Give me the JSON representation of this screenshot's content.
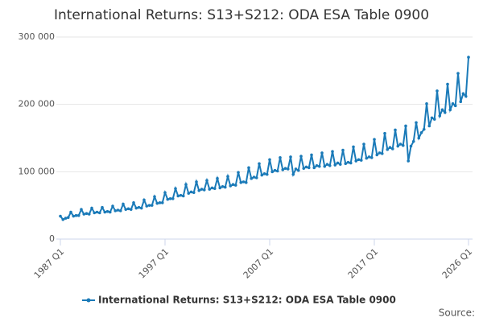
{
  "chart_data": {
    "type": "line",
    "title": "International Returns: S13+S212: ODA ESA Table 0900",
    "source": "Source:",
    "categories": [
      "1987 Q1",
      null,
      null,
      null,
      null,
      null,
      null,
      null,
      null,
      null,
      null,
      null,
      null,
      null,
      null,
      null,
      null,
      null,
      null,
      null,
      null,
      null,
      null,
      null,
      null,
      null,
      null,
      null,
      null,
      null,
      null,
      null,
      null,
      null,
      null,
      null,
      null,
      null,
      null,
      null,
      "1997 Q1",
      null,
      null,
      null,
      null,
      null,
      null,
      null,
      null,
      null,
      null,
      null,
      null,
      null,
      null,
      null,
      null,
      null,
      null,
      null,
      null,
      null,
      null,
      null,
      null,
      null,
      null,
      null,
      null,
      null,
      null,
      null,
      null,
      null,
      null,
      null,
      null,
      null,
      null,
      null,
      "2007 Q1",
      null,
      null,
      null,
      null,
      null,
      null,
      null,
      null,
      null,
      null,
      null,
      null,
      null,
      null,
      null,
      null,
      null,
      null,
      null,
      null,
      null,
      null,
      null,
      null,
      null,
      null,
      null,
      null,
      null,
      null,
      null,
      null,
      null,
      null,
      null,
      null,
      null,
      null,
      null,
      "2017 Q1",
      null,
      null,
      null,
      null,
      null,
      null,
      null,
      null,
      null,
      null,
      null,
      null,
      null,
      null,
      null,
      null,
      null,
      null,
      null,
      null,
      null,
      null,
      null,
      null,
      null,
      null,
      null,
      null,
      null,
      null,
      null,
      null,
      null,
      null,
      null,
      "2026 Q1"
    ],
    "series": [
      {
        "name": "International Returns: S13+S212: ODA ESA Table 0900",
        "color": "#1a7ab8",
        "values": [
          34000,
          29000,
          31000,
          32000,
          40000,
          34000,
          35000,
          35000,
          44000,
          37000,
          38000,
          37000,
          46000,
          39000,
          40000,
          39000,
          47000,
          40000,
          41000,
          40000,
          49000,
          42000,
          43000,
          42000,
          52000,
          44000,
          45000,
          44000,
          54000,
          46000,
          47000,
          46000,
          58000,
          49000,
          50000,
          50000,
          63000,
          53000,
          54000,
          54000,
          69000,
          59000,
          60000,
          60000,
          75000,
          64000,
          65000,
          64000,
          81000,
          68000,
          70000,
          69000,
          85000,
          72000,
          74000,
          73000,
          87000,
          74000,
          76000,
          75000,
          90000,
          76000,
          78000,
          77000,
          93000,
          79000,
          81000,
          80000,
          99000,
          84000,
          85000,
          84000,
          106000,
          90000,
          92000,
          91000,
          112000,
          95000,
          97000,
          96000,
          118000,
          100000,
          102000,
          101000,
          121000,
          103000,
          105000,
          104000,
          122000,
          96000,
          104000,
          102000,
          123000,
          105000,
          107000,
          106000,
          125000,
          106000,
          109000,
          108000,
          128000,
          108000,
          111000,
          109000,
          130000,
          110000,
          113000,
          111000,
          132000,
          112000,
          114000,
          113000,
          137000,
          116000,
          118000,
          117000,
          141000,
          120000,
          122000,
          121000,
          148000,
          125000,
          128000,
          127000,
          157000,
          133000,
          136000,
          134000,
          162000,
          138000,
          141000,
          139000,
          168000,
          116000,
          138000,
          145000,
          173000,
          150000,
          158000,
          163000,
          201000,
          168000,
          180000,
          178000,
          220000,
          183000,
          192000,
          188000,
          230000,
          192000,
          201000,
          198000,
          246000,
          204000,
          216000,
          212000,
          270000
        ]
      }
    ],
    "ylim": [
      0,
      300000
    ],
    "yticks": [
      0,
      {
        "value": 100000,
        "label": "100 000"
      },
      {
        "value": 200000,
        "label": "200 000"
      },
      {
        "value": 300000,
        "label": "300 000"
      }
    ],
    "grid": true
  }
}
